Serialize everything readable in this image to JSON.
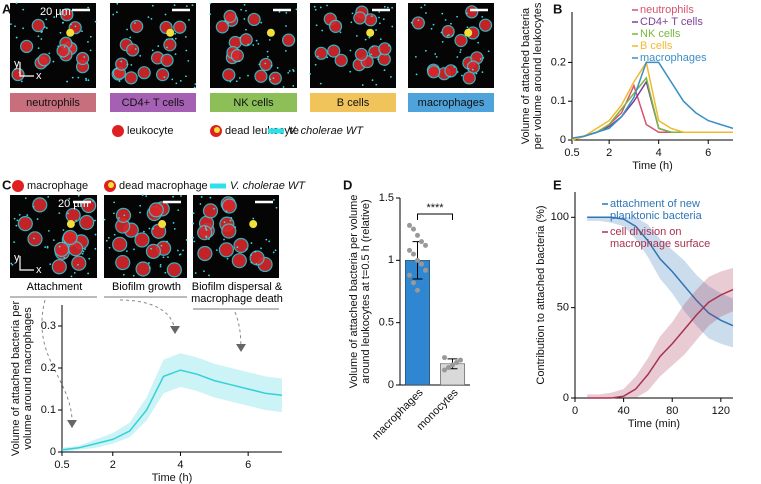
{
  "panel_labels": [
    "A",
    "B",
    "C",
    "D",
    "E"
  ],
  "panel_a": {
    "scale_bar": "20 µm",
    "axis_y": "y",
    "axis_x": "x",
    "cell_types": [
      "neutrophils",
      "CD4+ T cells",
      "NK cells",
      "B cells",
      "macrophages"
    ],
    "legend": [
      "leukocyte",
      "dead leukocyte",
      "V. cholerae WT"
    ]
  },
  "panel_c": {
    "scale_bar": "20 µm",
    "axis_y": "y",
    "axis_x": "x",
    "legend": [
      "macrophage",
      "dead macrophage",
      "V. cholerae WT"
    ],
    "stages": [
      "Attachment",
      "Biofilm growth",
      "Biofilm dispersal & macrophage death"
    ]
  },
  "chart_data": [
    {
      "type": "line",
      "xlabel": "Time (h)",
      "ylabel": [
        "Volume of attached bacteria",
        "per volume around leukocytes"
      ],
      "x": [
        0.5,
        1,
        1.5,
        2,
        2.5,
        3,
        3.5,
        4,
        4.5,
        5,
        5.5,
        6,
        6.5,
        7
      ],
      "xlim": [
        0.5,
        7
      ],
      "ylim": [
        0,
        0.33
      ],
      "xticks": [
        0.5,
        2,
        4,
        6
      ],
      "yticks": [
        0,
        0.1,
        0.2
      ],
      "legend": "upper right",
      "series": [
        {
          "name": "neutrophils",
          "color": "#d9536f",
          "values": [
            0,
            0.01,
            0.02,
            0.04,
            0.07,
            0.14,
            0.04,
            0.02,
            0.02,
            0.02,
            0.02,
            0.02,
            0.02,
            0.02
          ]
        },
        {
          "name": "CD4+ T cells",
          "color": "#7e3f98",
          "values": [
            0,
            0.01,
            0.02,
            0.035,
            0.06,
            0.1,
            0.15,
            0.03,
            0.02,
            0.02,
            0.02,
            0.02,
            0.02,
            0.02
          ]
        },
        {
          "name": "NK cells",
          "color": "#7ab640",
          "values": [
            0,
            0.01,
            0.02,
            0.04,
            0.08,
            0.12,
            0.16,
            0.03,
            0.02,
            0.02,
            0.02,
            0.02,
            0.02,
            0.02
          ]
        },
        {
          "name": "B cells",
          "color": "#f1b92f",
          "values": [
            0,
            0.01,
            0.03,
            0.05,
            0.09,
            0.15,
            0.2,
            0.05,
            0.03,
            0.02,
            0.02,
            0.02,
            0.02,
            0.02
          ]
        },
        {
          "name": "macrophages",
          "color": "#3a8fc6",
          "values": [
            0.005,
            0.01,
            0.02,
            0.03,
            0.06,
            0.11,
            0.2,
            0.2,
            0.15,
            0.1,
            0.07,
            0.05,
            0.04,
            0.03
          ]
        }
      ]
    },
    {
      "type": "line",
      "xlabel": "Time (h)",
      "ylabel": [
        "Volume of attached bacteria per",
        "volume around macrophages"
      ],
      "x": [
        0.5,
        1,
        1.5,
        2,
        2.5,
        3,
        3.5,
        4,
        4.5,
        5,
        5.5,
        6,
        6.5,
        7
      ],
      "xlim": [
        0.5,
        7
      ],
      "ylim": [
        0,
        0.35
      ],
      "xticks": [
        0.5,
        2,
        4,
        6
      ],
      "yticks": [
        0,
        0.1,
        0.2,
        0.3
      ],
      "series": [
        {
          "color": "#35d1d9",
          "values": [
            0.005,
            0.01,
            0.02,
            0.03,
            0.05,
            0.1,
            0.18,
            0.195,
            0.185,
            0.17,
            0.16,
            0.15,
            0.14,
            0.135
          ],
          "lower": [
            0,
            0.005,
            0.01,
            0.02,
            0.035,
            0.075,
            0.14,
            0.155,
            0.145,
            0.13,
            0.12,
            0.11,
            0.1,
            0.095
          ],
          "upper": [
            0.01,
            0.015,
            0.03,
            0.045,
            0.07,
            0.13,
            0.22,
            0.235,
            0.225,
            0.21,
            0.2,
            0.19,
            0.18,
            0.175
          ]
        }
      ]
    },
    {
      "type": "bar",
      "ylabel": [
        "Volume of attached bacteria per volume",
        "around leukocytes at t=0.5 h (relative)"
      ],
      "categories": [
        "macrophages",
        "monocytes"
      ],
      "values": [
        1.0,
        0.17
      ],
      "errors": [
        0.15,
        0.04
      ],
      "colors": [
        "#2f86d1",
        "#d9d9d9"
      ],
      "points": [
        [
          1.28,
          1.25,
          1.2,
          1.15,
          1.12,
          1.08,
          1.05,
          1.0,
          0.97,
          0.92,
          0.88,
          0.82,
          0.76
        ],
        [
          0.12,
          0.14,
          0.16,
          0.18,
          0.2,
          0.22
        ]
      ],
      "ylim": [
        0,
        1.5
      ],
      "yticks": [
        0,
        0.5,
        1,
        1.5
      ],
      "annotation": "****"
    },
    {
      "type": "line",
      "xlabel": "Time (min)",
      "ylabel": [
        "Contribution to attached bacteria (%)"
      ],
      "x": [
        10,
        20,
        30,
        40,
        50,
        60,
        70,
        80,
        90,
        100,
        110,
        120,
        130
      ],
      "xlim": [
        0,
        130
      ],
      "ylim": [
        0,
        114
      ],
      "xticks": [
        0,
        40,
        80,
        120
      ],
      "yticks": [
        0,
        50,
        100
      ],
      "legend": "upper right",
      "series": [
        {
          "name": "attachment of new planktonic bacteria",
          "color": "#2e75b6",
          "values": [
            100,
            100,
            100,
            99,
            95,
            87,
            77,
            70,
            62,
            54,
            47,
            43,
            40
          ],
          "lower": [
            98,
            98,
            97,
            95,
            88,
            78,
            66,
            58,
            48,
            40,
            33,
            30,
            28
          ],
          "upper": [
            100,
            100,
            100,
            100,
            100,
            96,
            88,
            82,
            76,
            68,
            62,
            58,
            55
          ]
        },
        {
          "name": "cell division on macrophage surface",
          "color": "#a83250",
          "values": [
            0,
            0,
            0,
            1,
            5,
            13,
            23,
            30,
            38,
            46,
            53,
            57,
            60
          ],
          "lower": [
            0,
            0,
            0,
            0,
            0,
            4,
            12,
            18,
            24,
            32,
            40,
            45,
            48
          ],
          "upper": [
            2,
            2,
            3,
            5,
            12,
            22,
            34,
            42,
            52,
            60,
            67,
            70,
            72
          ]
        }
      ]
    }
  ]
}
